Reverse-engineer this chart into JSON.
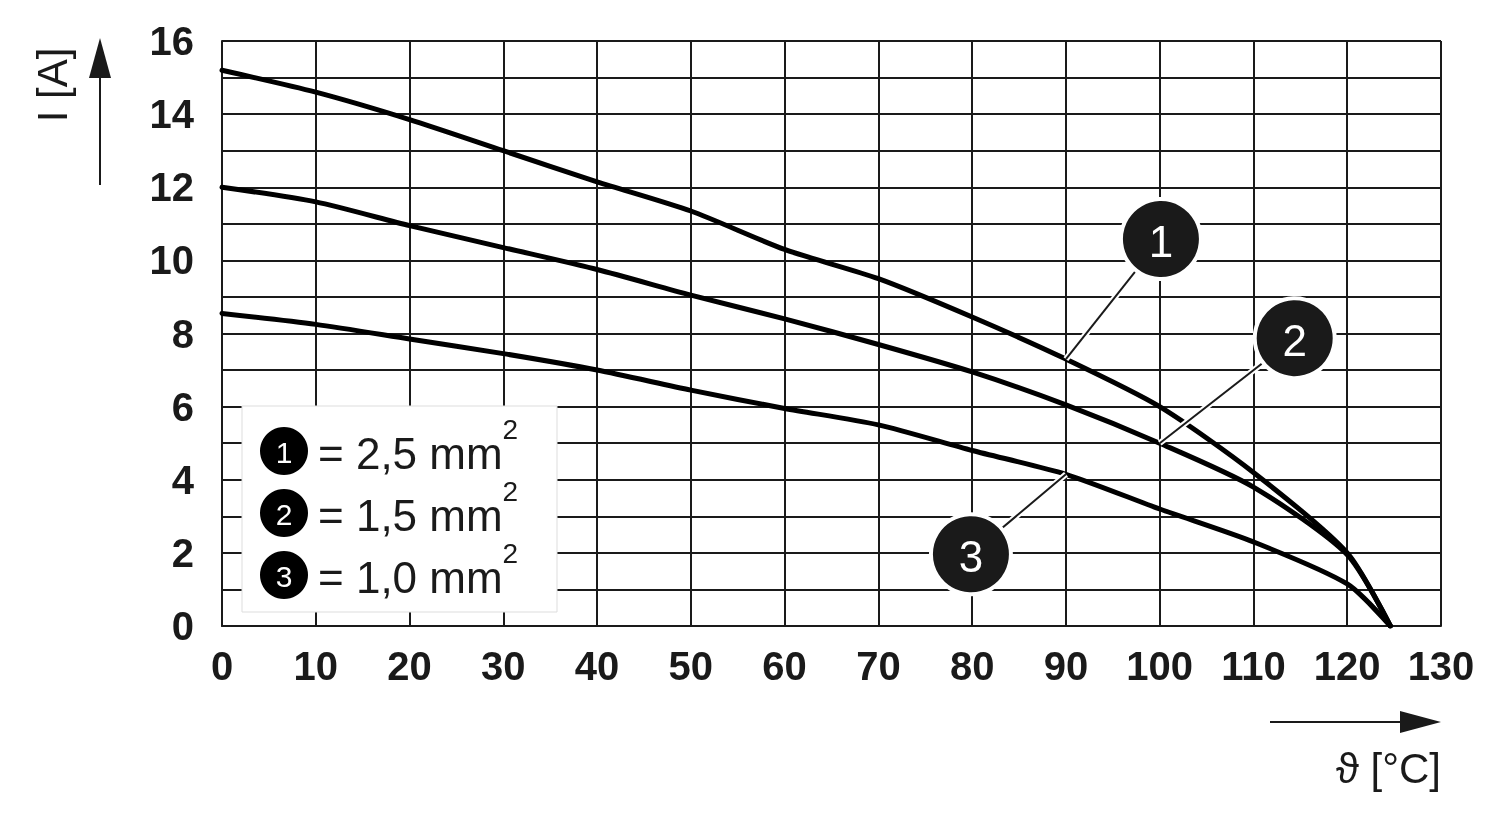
{
  "chart_data": {
    "type": "line",
    "xlabel": "ϑ [°C]",
    "ylabel": "I [A]",
    "x": [
      0,
      10,
      20,
      30,
      40,
      50,
      60,
      70,
      80,
      90,
      100,
      110,
      120,
      124.6
    ],
    "series": [
      {
        "name": "1",
        "color": "#000000",
        "values": [
          15.2,
          14.6,
          13.85,
          13.0,
          12.15,
          11.35,
          10.3,
          9.5,
          8.45,
          7.3,
          6.0,
          4.2,
          2.0,
          0
        ]
      },
      {
        "name": "2",
        "color": "#000000",
        "values": [
          12.0,
          11.6,
          10.95,
          10.35,
          9.75,
          9.05,
          8.4,
          7.7,
          6.95,
          6.05,
          5.0,
          3.8,
          1.95,
          0
        ]
      },
      {
        "name": "3",
        "color": "#000000",
        "values": [
          8.55,
          8.25,
          7.85,
          7.45,
          7.0,
          6.45,
          5.95,
          5.5,
          4.8,
          4.15,
          3.2,
          2.3,
          1.15,
          0
        ]
      }
    ],
    "annotations": [
      "= 2,5 mm$^{2}$",
      "= 1,5 mm$^{2}$",
      "= 1,0 mm$^{2}$"
    ],
    "xlim": [
      0,
      130
    ],
    "xticks": [
      0,
      10,
      20,
      30,
      40,
      50,
      60,
      70,
      80,
      90,
      100,
      110,
      120,
      130
    ],
    "ylim": [
      0,
      16
    ],
    "yticks": [
      0,
      {
        "value": 1,
        "label": null
      },
      2,
      {
        "value": 3,
        "label": null
      },
      4,
      {
        "value": 5,
        "label": null
      },
      6,
      {
        "value": 7,
        "label": null
      },
      8,
      {
        "value": 9,
        "label": null
      },
      10,
      {
        "value": 11,
        "label": null
      },
      12,
      {
        "value": 13,
        "label": null
      },
      14,
      {
        "value": 15,
        "label": null
      },
      16
    ],
    "grid": true,
    "legend": "bottom left",
    "marker": "none",
    "line_style": "solid"
  }
}
